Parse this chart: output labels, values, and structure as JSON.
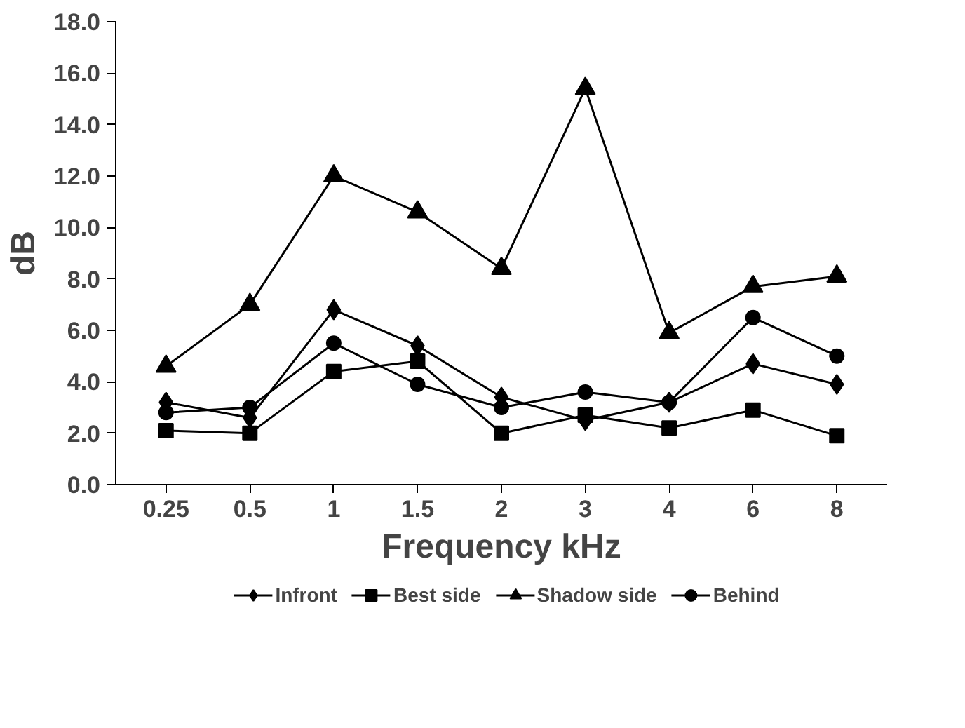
{
  "chart_data": {
    "type": "line",
    "xlabel": "Frequency kHz",
    "ylabel": "dB",
    "categories": [
      "0.25",
      "0.5",
      "1",
      "1.5",
      "2",
      "3",
      "4",
      "6",
      "8"
    ],
    "ylim": [
      0,
      18
    ],
    "yticks": [
      {
        "value": 0,
        "label": "0.0"
      },
      {
        "value": 2,
        "label": "2.0"
      },
      {
        "value": 4,
        "label": "4.0"
      },
      {
        "value": 6,
        "label": "6.0"
      },
      {
        "value": 8,
        "label": "8.0"
      },
      {
        "value": 10,
        "label": "10.0"
      },
      {
        "value": 12,
        "label": "12.0"
      },
      {
        "value": 14,
        "label": "14.0"
      },
      {
        "value": 16,
        "label": "16.0"
      },
      {
        "value": 18,
        "label": "18.0"
      }
    ],
    "grid": false,
    "legend": "bottom",
    "line_style": "solid",
    "series": [
      {
        "name": "Infront",
        "color": "#000000",
        "marker": "diamond",
        "values": [
          3.2,
          2.6,
          6.8,
          5.4,
          3.4,
          2.5,
          3.2,
          4.7,
          3.9
        ]
      },
      {
        "name": "Best side",
        "color": "#000000",
        "marker": "square",
        "values": [
          2.1,
          2.0,
          4.4,
          4.8,
          2.0,
          2.7,
          2.2,
          2.9,
          1.9
        ]
      },
      {
        "name": "Shadow side",
        "color": "#000000",
        "marker": "triangle",
        "values": [
          4.6,
          7.0,
          12.0,
          10.6,
          8.4,
          15.4,
          5.9,
          7.7,
          8.1
        ]
      },
      {
        "name": "Behind",
        "color": "#000000",
        "marker": "circle",
        "values": [
          2.8,
          3.0,
          5.5,
          3.9,
          3.0,
          3.6,
          3.2,
          6.5,
          5.0
        ]
      }
    ]
  }
}
